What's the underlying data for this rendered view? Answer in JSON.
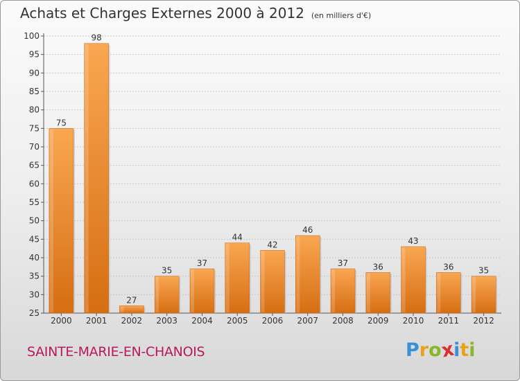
{
  "chart_data": {
    "type": "bar",
    "title": "Achats et Charges Externes 2000 à 2012",
    "subtitle": "(en milliers d'€)",
    "categories": [
      "2000",
      "2001",
      "2002",
      "2003",
      "2004",
      "2005",
      "2006",
      "2007",
      "2008",
      "2009",
      "2010",
      "2011",
      "2012"
    ],
    "values": [
      75,
      98,
      27,
      35,
      37,
      44,
      42,
      46,
      37,
      36,
      43,
      36,
      35
    ],
    "ylim": [
      25,
      100
    ],
    "yticks": [
      25,
      30,
      35,
      40,
      45,
      50,
      55,
      60,
      65,
      70,
      75,
      80,
      85,
      90,
      95,
      100
    ],
    "grid": true,
    "bar_color": "#f08a2c"
  },
  "footer": {
    "commune": "SAINTE-MARIE-EN-CHANOIS",
    "logo_letters": [
      "P",
      "r",
      "o",
      "x",
      "i",
      "t",
      "i"
    ],
    "logo_colors": [
      "#3a8fd6",
      "#e8a21a",
      "#8ab62a",
      "#d9302f",
      "#3a8fd6",
      "#e8a21a",
      "#8ab62a"
    ]
  }
}
